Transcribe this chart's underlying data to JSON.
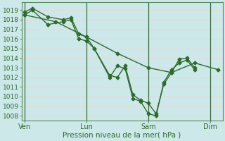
{
  "xlabel": "Pression niveau de la mer( hPa )",
  "background_color": "#cce8e8",
  "grid_color": "#e8d8d8",
  "line_color": "#2d6b2d",
  "vline_color": "#3a6a3a",
  "ylim": [
    1007.5,
    1019.8
  ],
  "yticks": [
    1008,
    1009,
    1010,
    1011,
    1012,
    1013,
    1014,
    1015,
    1016,
    1017,
    1018,
    1019
  ],
  "xtick_labels": [
    "Ven",
    "Lun",
    "Sam",
    "Dim"
  ],
  "xtick_positions": [
    0,
    4,
    8,
    12
  ],
  "vline_positions": [
    0,
    4,
    8,
    12
  ],
  "series1_x": [
    0,
    0.5,
    1.5,
    2.5,
    3.0,
    3.5,
    4.0,
    4.5,
    5.5,
    6.0,
    6.5,
    7.0,
    7.5,
    8.0,
    8.5,
    9.0,
    9.5,
    10.0,
    10.5,
    11.0
  ],
  "series1_y": [
    1018.8,
    1019.2,
    1018.3,
    1018.0,
    1018.2,
    1016.5,
    1016.2,
    1015.0,
    1012.2,
    1012.0,
    1013.2,
    1010.2,
    1009.6,
    1009.3,
    1008.2,
    1011.3,
    1012.5,
    1013.9,
    1014.0,
    1013.0
  ],
  "series2_x": [
    0,
    0.5,
    1.5,
    2.5,
    3.0,
    3.5,
    4.0,
    4.5,
    5.5,
    6.0,
    6.5,
    7.0,
    7.5,
    8.0,
    8.5,
    9.0,
    9.5,
    10.0,
    10.5,
    11.0
  ],
  "series2_y": [
    1018.5,
    1019.0,
    1017.5,
    1017.8,
    1018.0,
    1016.0,
    1015.8,
    1015.0,
    1012.0,
    1013.2,
    1012.9,
    1009.8,
    1009.5,
    1008.2,
    1008.0,
    1011.5,
    1012.8,
    1013.5,
    1013.8,
    1012.8
  ],
  "series3_x": [
    0,
    2.0,
    4.0,
    6.0,
    8.0,
    9.5,
    11.0,
    12.5
  ],
  "series3_y": [
    1018.5,
    1017.8,
    1016.2,
    1014.5,
    1013.0,
    1012.5,
    1013.5,
    1012.8
  ],
  "xlim": [
    -0.2,
    12.8
  ],
  "marker": "D",
  "markersize": 2.5,
  "linewidth": 1.0
}
